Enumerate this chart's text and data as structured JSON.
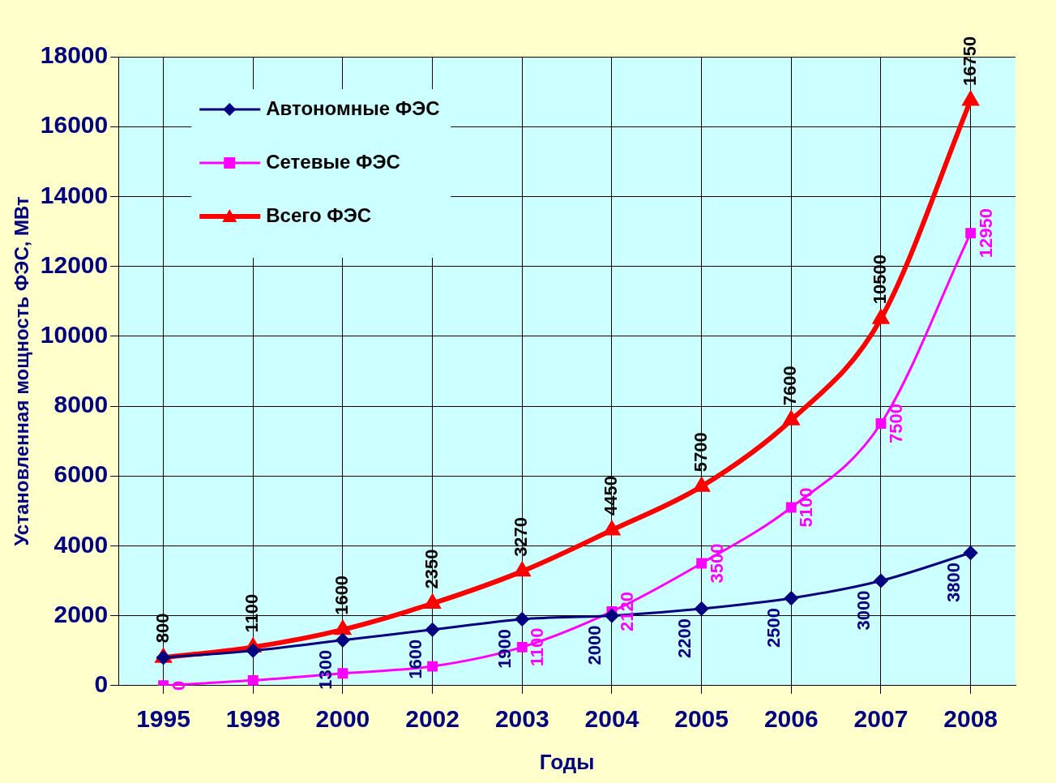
{
  "chart_data": {
    "type": "line",
    "xlabel": "Годы",
    "ylabel": "Установленная мощность ФЭС, МВт",
    "categories": [
      "1995",
      "1998",
      "2000",
      "2002",
      "2003",
      "2004",
      "2005",
      "2006",
      "2007",
      "2008"
    ],
    "ylim": [
      0,
      18000
    ],
    "yticks": [
      0,
      2000,
      4000,
      6000,
      8000,
      10000,
      12000,
      14000,
      16000,
      18000
    ],
    "grid": true,
    "legend": "top left",
    "line_style": "solid",
    "series": [
      {
        "name": "Автономные ФЭС",
        "color": "#000080",
        "marker": "diamond",
        "values": [
          800,
          1000,
          1300,
          1600,
          1900,
          2000,
          2200,
          2500,
          3000,
          3800
        ],
        "value_labels": [
          null,
          null,
          "1300",
          "1600",
          "1900",
          "2000",
          "2200",
          "2500",
          "3000",
          "3800"
        ]
      },
      {
        "name": "Сетевые ФЭС",
        "color": "#ff00ff",
        "marker": "square",
        "values": [
          0,
          150,
          350,
          550,
          1100,
          2120,
          3500,
          5100,
          7500,
          12950
        ],
        "value_labels": [
          "0",
          null,
          null,
          null,
          "1100",
          "2120",
          "3500",
          "5100",
          "7500",
          "12950"
        ]
      },
      {
        "name": "Всего ФЭС",
        "color": "#ff0000",
        "marker": "triangle",
        "values": [
          800,
          1100,
          1600,
          2350,
          3270,
          4450,
          5700,
          7600,
          10500,
          16750
        ],
        "value_labels": [
          "800",
          "1100",
          "1600",
          "2350",
          "3270",
          "4450",
          "5700",
          "7600",
          "10500",
          "16750"
        ]
      }
    ]
  }
}
